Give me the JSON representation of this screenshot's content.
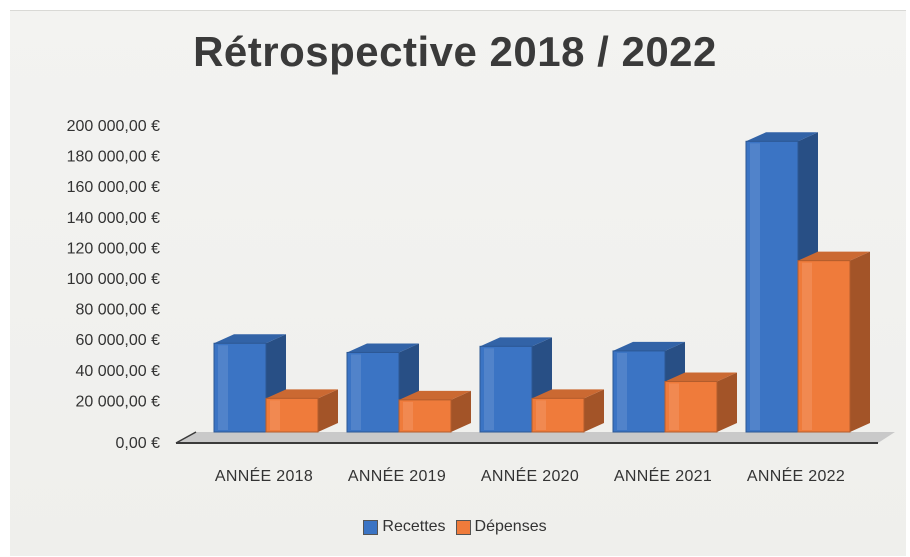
{
  "chart_data": {
    "type": "bar",
    "title": "Rétrospective 2018 / 2022",
    "xlabel": "",
    "ylabel": "",
    "categories": [
      "ANNÉE 2018",
      "ANNÉE 2019",
      "ANNÉE 2020",
      "ANNÉE 2021",
      "ANNÉE 2022"
    ],
    "series": [
      {
        "name": "Recettes",
        "color": "#3b74c4",
        "values": [
          58000,
          52000,
          56000,
          53000,
          190000
        ]
      },
      {
        "name": "Dépenses",
        "color": "#ef7b3b",
        "values": [
          22000,
          21000,
          22000,
          33000,
          112000
        ]
      }
    ],
    "ylim": [
      0,
      200000
    ],
    "yticks": [
      "0,00 €",
      "20 000,00 €",
      "40 000,00 €",
      "60 000,00 €",
      "80 000,00 €",
      "100 000,00 €",
      "120 000,00 €",
      "140 000,00 €",
      "160 000,00 €",
      "180 000,00 €",
      "200 000,00 €"
    ],
    "grid": false,
    "legend_position": "bottom",
    "style": "3d-column"
  }
}
